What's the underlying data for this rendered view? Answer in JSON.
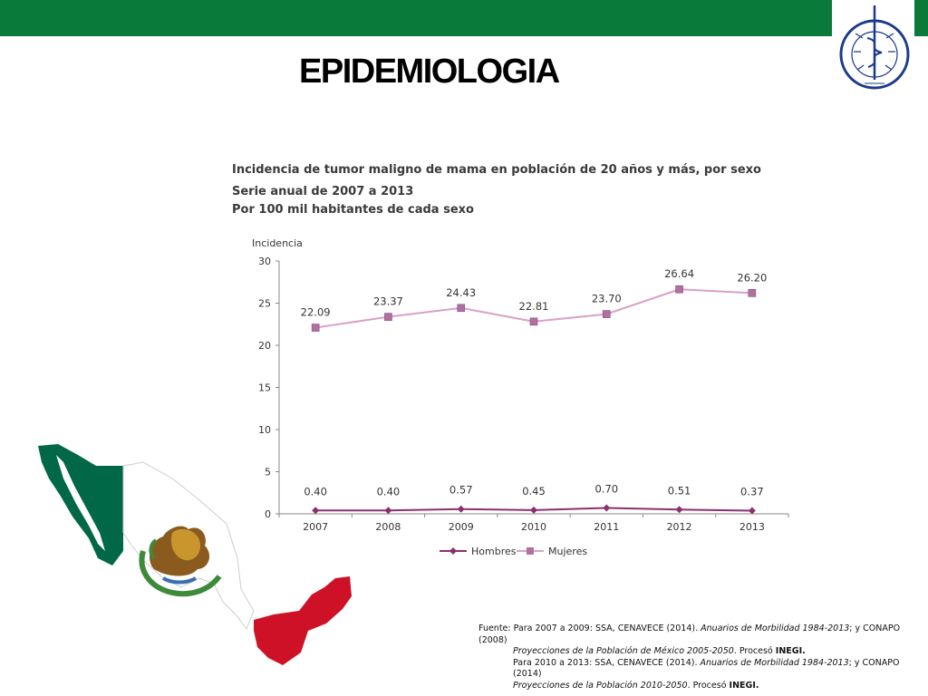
{
  "slide": {
    "title": "EPIDEMIOLOGIA",
    "logo_text": "INSTITUTO NACIONAL DE CANCEROLOGIA México"
  },
  "colors": {
    "top_bar": "#0a7a3a",
    "mujeres": "#d9a0c8",
    "mujeres_marker": "#b070a0",
    "hombres": "#8a3070",
    "flag_green": "#006847",
    "flag_red": "#ce1126"
  },
  "chart_data": {
    "type": "line",
    "title": "Incidencia de tumor maligno de mama en población de 20 años y más, por sexo",
    "subtitle": "Serie anual de 2007 a 2013",
    "units": "Por 100 mil habitantes de cada sexo",
    "ylabel": "Incidencia",
    "xlabel": "",
    "x": [
      "2007",
      "2008",
      "2009",
      "2010",
      "2011",
      "2012",
      "2013"
    ],
    "ylim": [
      0,
      30
    ],
    "yticks": [
      0,
      5,
      10,
      15,
      20,
      25,
      30
    ],
    "grid": false,
    "legend_position": "bottom",
    "series": [
      {
        "name": "Hombres",
        "values": [
          0.4,
          0.4,
          0.57,
          0.45,
          0.7,
          0.51,
          0.37
        ],
        "labels": [
          "0.40",
          "0.40",
          "0.57",
          "0.45",
          "0.70",
          "0.51",
          "0.37"
        ]
      },
      {
        "name": "Mujeres",
        "values": [
          22.09,
          23.37,
          24.43,
          22.81,
          23.7,
          26.64,
          26.2
        ],
        "labels": [
          "22.09",
          "23.37",
          "24.43",
          "22.81",
          "23.70",
          "26.64",
          "26.20"
        ]
      }
    ]
  },
  "source": {
    "label": "Fuente:",
    "line1_prefix": "Para 2007 a 2009: SSA, CENAVECE (2014).",
    "line1_italic": "Anuarios de Morbilidad 1984-2013",
    "line1_suffix": "; y CONAPO (2008)",
    "line2_italic": "Proyecciones de la Población de México 2005-2050",
    "line2_suffix": ". Procesó",
    "line2_bold": "INEGI.",
    "line3_prefix": "Para 2010 a 2013: SSA, CENAVECE (2014).",
    "line3_italic": "Anuarios de Morbilidad 1984-2013",
    "line3_suffix": "; y CONAPO (2014)",
    "line4_italic": "Proyecciones de la Población 2010-2050",
    "line4_suffix": ". Procesó",
    "line4_bold": "INEGI."
  }
}
